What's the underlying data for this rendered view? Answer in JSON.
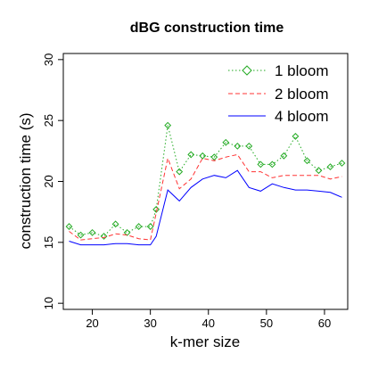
{
  "chart_data": {
    "type": "line",
    "title": "dBG construction time",
    "xlabel": "k-mer size",
    "ylabel": "construction time (s)",
    "xlim": [
      15,
      64
    ],
    "ylim": [
      9.5,
      30.5
    ],
    "xticks": [
      20,
      30,
      40,
      50,
      60
    ],
    "yticks": [
      10,
      15,
      20,
      25,
      30
    ],
    "x": [
      16,
      18,
      20,
      22,
      24,
      26,
      28,
      30,
      31,
      33,
      35,
      37,
      39,
      41,
      43,
      45,
      47,
      49,
      51,
      53,
      55,
      57,
      59,
      61,
      63
    ],
    "series": [
      {
        "name": "1 bloom",
        "color": "#22aa22",
        "style": "dotted",
        "marker": "diamond",
        "values": [
          16.3,
          15.6,
          15.8,
          15.5,
          16.5,
          15.8,
          16.3,
          16.3,
          17.7,
          24.6,
          20.8,
          22.2,
          22.1,
          22.0,
          23.2,
          22.9,
          22.9,
          21.4,
          21.4,
          22.1,
          23.7,
          21.7,
          20.9,
          21.2,
          21.5
        ]
      },
      {
        "name": "2 bloom",
        "color": "#ff3333",
        "style": "dashed",
        "marker": "none",
        "values": [
          15.9,
          15.2,
          15.3,
          15.4,
          15.7,
          15.6,
          15.3,
          15.2,
          17.4,
          21.9,
          19.4,
          20.2,
          21.9,
          21.7,
          22.0,
          22.2,
          20.8,
          20.8,
          20.3,
          20.5,
          20.5,
          20.5,
          20.5,
          20.2,
          20.4
        ]
      },
      {
        "name": "4 bloom",
        "color": "#0000ff",
        "style": "solid",
        "marker": "none",
        "values": [
          15.1,
          14.8,
          14.8,
          14.8,
          14.9,
          14.9,
          14.8,
          14.8,
          15.5,
          19.3,
          18.4,
          19.5,
          20.2,
          20.5,
          20.3,
          20.9,
          19.5,
          19.2,
          19.8,
          19.5,
          19.3,
          19.3,
          19.2,
          19.1,
          18.7
        ]
      }
    ],
    "legend_position": "top-right",
    "grid": false
  }
}
